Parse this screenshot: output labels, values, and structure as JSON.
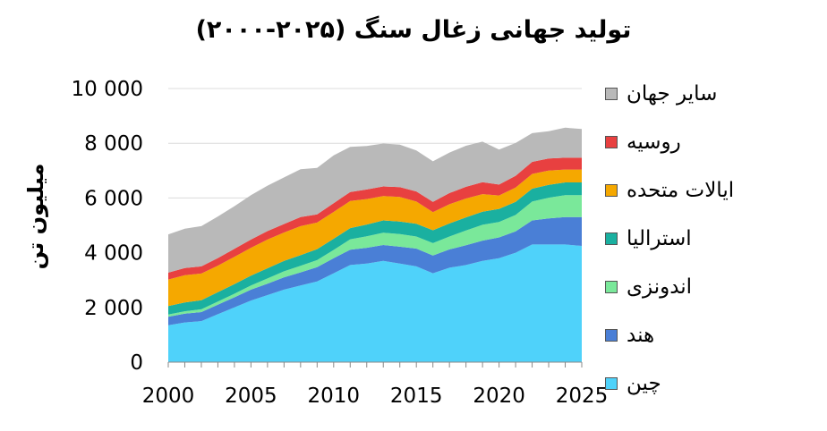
{
  "chart_data": {
    "type": "area",
    "stacked": true,
    "title": "تولید جهانی زغال سنگ (۲۰۲۵-۲۰۰۰)",
    "ylabel": "میلیون تن",
    "xlabel": "",
    "x": [
      2000,
      2001,
      2002,
      2003,
      2004,
      2005,
      2006,
      2007,
      2008,
      2009,
      2010,
      2011,
      2012,
      2013,
      2014,
      2015,
      2016,
      2017,
      2018,
      2019,
      2020,
      2021,
      2022,
      2023,
      2024,
      2025
    ],
    "xlim": [
      2000,
      2025
    ],
    "ylim": [
      0,
      10000
    ],
    "x_ticks": [
      "2000",
      "2005",
      "2010",
      "2015",
      "2020",
      "2025"
    ],
    "y_ticks": [
      "0",
      "2 000",
      "4 000",
      "6 000",
      "8 000",
      "10 000"
    ],
    "grid": "horizontal",
    "legend_position": "right",
    "series": [
      {
        "name": "چین",
        "color": "#4fd2fa",
        "values": [
          1350,
          1450,
          1500,
          1750,
          2000,
          2250,
          2450,
          2650,
          2800,
          2950,
          3250,
          3550,
          3600,
          3700,
          3600,
          3500,
          3250,
          3450,
          3550,
          3700,
          3800,
          4000,
          4300,
          4300,
          4300,
          4250
        ]
      },
      {
        "name": "هند",
        "color": "#4a7fd6",
        "values": [
          310,
          320,
          330,
          350,
          370,
          400,
          420,
          450,
          480,
          520,
          550,
          560,
          580,
          580,
          620,
          650,
          650,
          670,
          720,
          740,
          760,
          780,
          880,
          950,
          1000,
          1050
        ]
      },
      {
        "name": "اندونزی",
        "color": "#7ae89a",
        "values": [
          80,
          90,
          100,
          115,
          130,
          150,
          190,
          220,
          240,
          260,
          300,
          380,
          420,
          450,
          460,
          440,
          450,
          470,
          540,
          580,
          560,
          600,
          690,
          760,
          800,
          800
        ]
      },
      {
        "name": "استرالیا",
        "color": "#1ab0a0",
        "values": [
          310,
          320,
          330,
          340,
          350,
          360,
          370,
          380,
          390,
          400,
          410,
          410,
          430,
          450,
          460,
          470,
          470,
          480,
          480,
          480,
          480,
          480,
          470,
          470,
          470,
          470
        ]
      },
      {
        "name": "ایالات متحده",
        "color": "#f5a800",
        "values": [
          970,
          1000,
          980,
          970,
          1000,
          1020,
          1050,
          1040,
          1060,
          970,
          980,
          990,
          930,
          890,
          900,
          810,
          660,
          700,
          690,
          640,
          490,
          520,
          540,
          520,
          470,
          470
        ]
      },
      {
        "name": "روسیه",
        "color": "#e84040",
        "values": [
          250,
          260,
          260,
          280,
          290,
          300,
          310,
          310,
          330,
          300,
          320,
          330,
          350,
          350,
          360,
          370,
          380,
          410,
          430,
          440,
          400,
          430,
          440,
          440,
          430,
          430
        ]
      },
      {
        "name": "سایر جهان",
        "color": "#b9b9b9",
        "values": [
          1400,
          1440,
          1470,
          1520,
          1560,
          1620,
          1660,
          1700,
          1750,
          1700,
          1750,
          1650,
          1590,
          1570,
          1550,
          1500,
          1480,
          1480,
          1500,
          1480,
          1280,
          1200,
          1050,
          1000,
          1100,
          1050
        ]
      }
    ]
  }
}
